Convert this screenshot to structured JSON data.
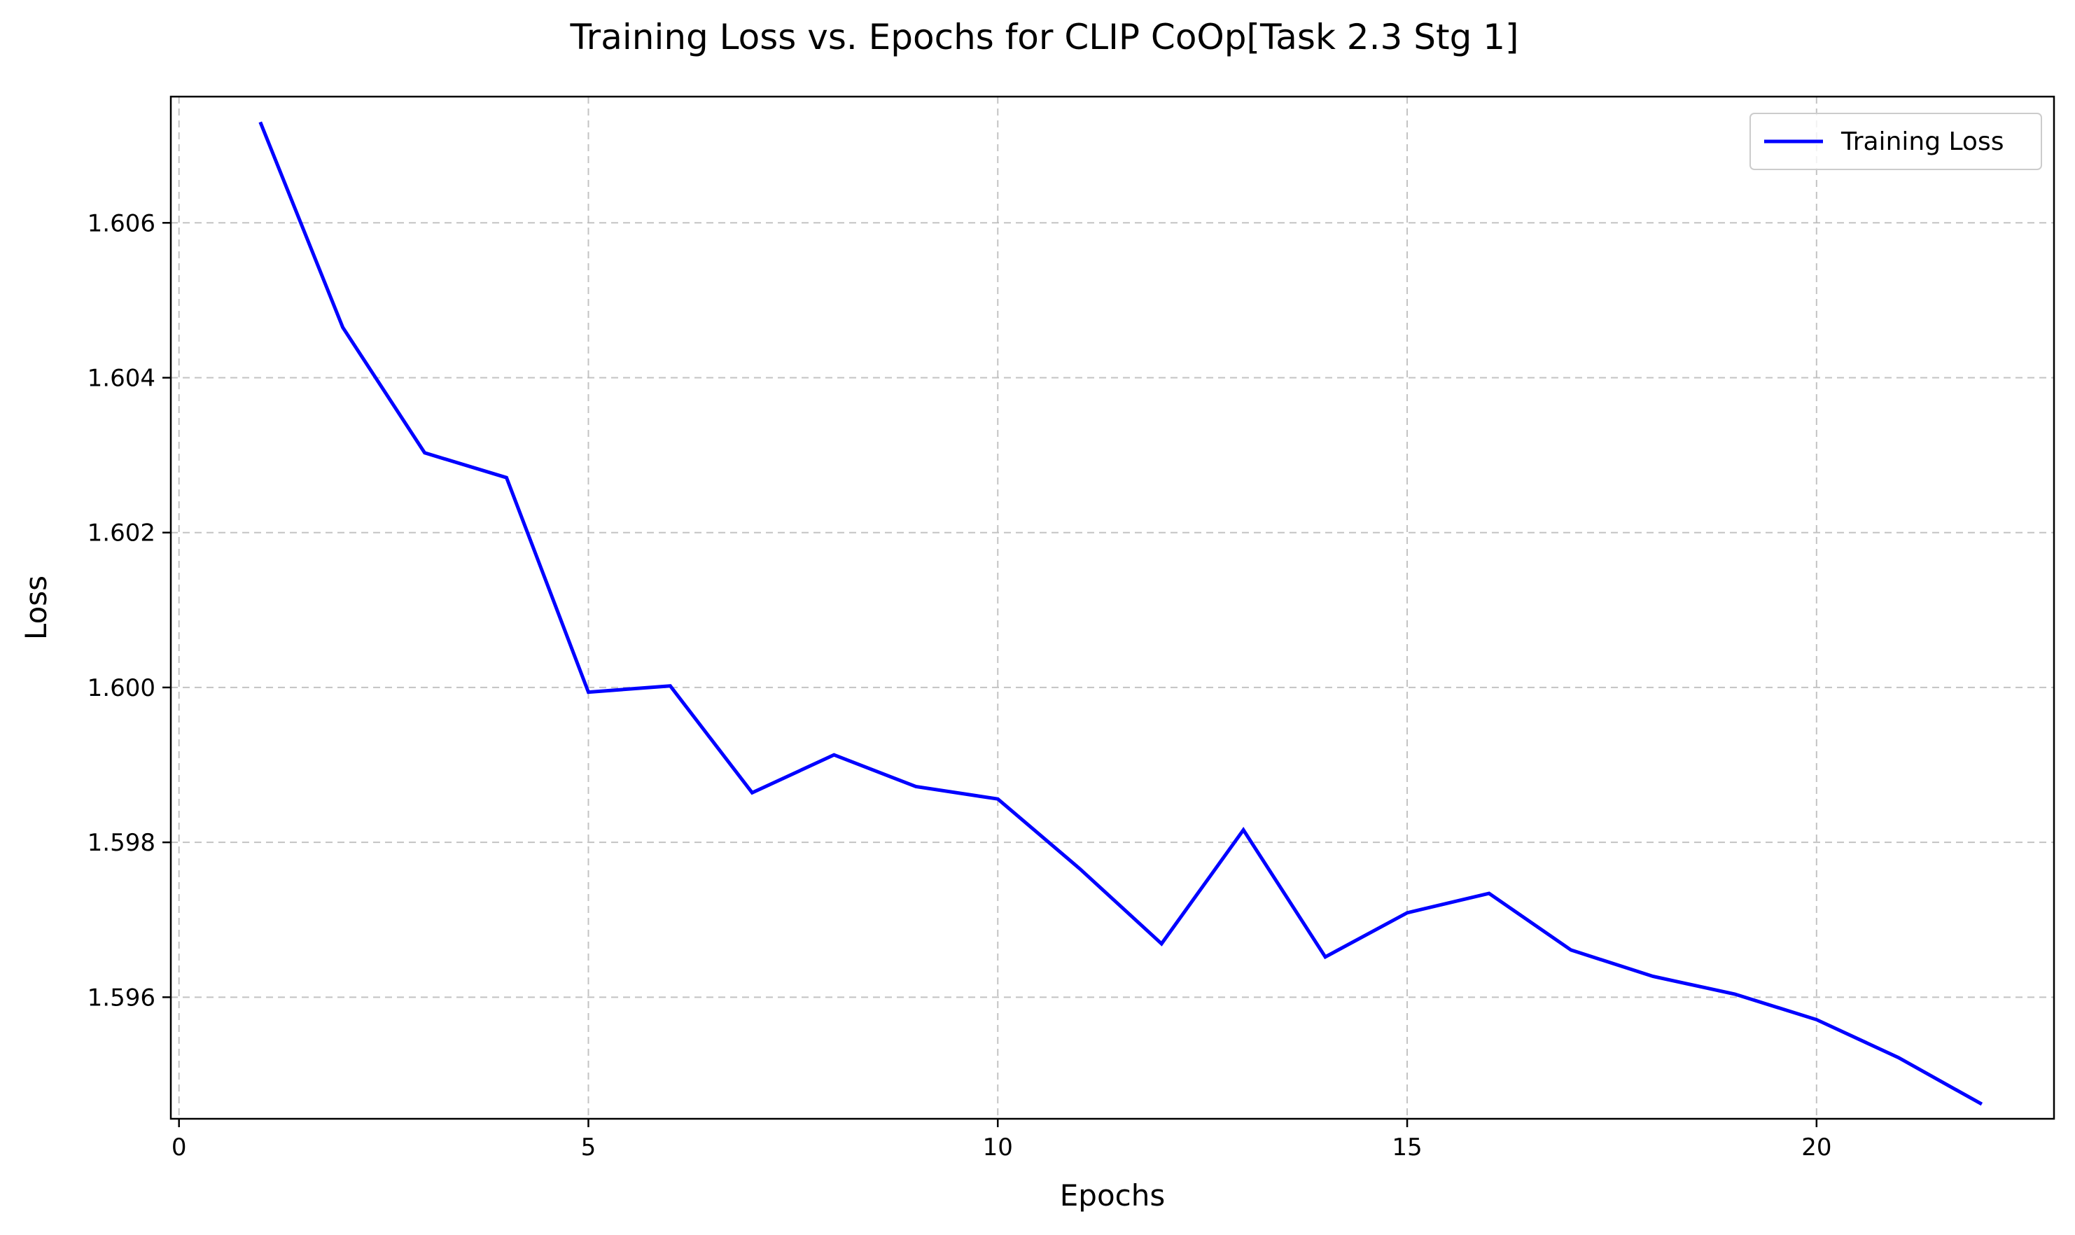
{
  "chart_data": {
    "type": "line",
    "title": "Training Loss vs. Epochs for CLIP CoOp[Task 2.3 Stg 1]",
    "xlabel": "Epochs",
    "ylabel": "Loss",
    "xlim": [
      -0.1,
      22.9
    ],
    "ylim": [
      1.59443,
      1.60763
    ],
    "xticks": [
      0,
      5,
      10,
      15,
      20
    ],
    "yticks": [
      1.596,
      1.598,
      1.6,
      1.602,
      1.604,
      1.606
    ],
    "ytick_labels": [
      "1.596",
      "1.598",
      "1.600",
      "1.602",
      "1.604",
      "1.606"
    ],
    "grid": true,
    "legend_position": "top-right",
    "series": [
      {
        "name": "Training Loss",
        "color": "#0000ff",
        "x": [
          1,
          2,
          3,
          4,
          5,
          6,
          7,
          8,
          9,
          10,
          11,
          12,
          13,
          14,
          15,
          16,
          17,
          18,
          19,
          20,
          21,
          22
        ],
        "values": [
          1.60728,
          1.60465,
          1.60303,
          1.60271,
          1.59994,
          1.60002,
          1.59864,
          1.59913,
          1.59872,
          1.59856,
          1.59766,
          1.59669,
          1.59816,
          1.59652,
          1.59709,
          1.59734,
          1.59661,
          1.59627,
          1.59604,
          1.59571,
          1.59522,
          1.59463
        ]
      }
    ]
  }
}
